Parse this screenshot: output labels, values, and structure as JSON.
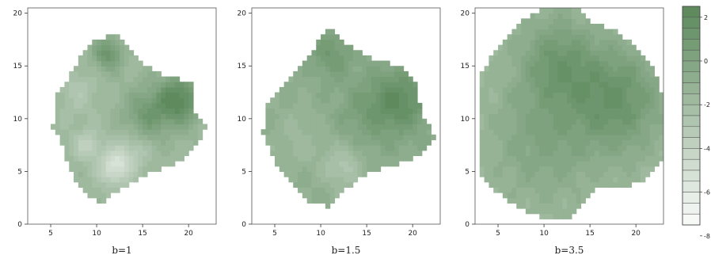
{
  "chart_data": [
    {
      "type": "heatmap",
      "label": "b=1",
      "xlim": [
        2.5,
        23
      ],
      "ylim": [
        0,
        20.5
      ],
      "xticks": [
        5,
        10,
        15,
        20
      ],
      "yticks": [
        0,
        5,
        10,
        15,
        20
      ],
      "hotspots": [
        {
          "x": 19,
          "y": 11.8,
          "value": 2.6,
          "spread": 1.6
        },
        {
          "x": 11.2,
          "y": 16.2,
          "value": 1.6,
          "spread": 1.1
        },
        {
          "x": 15.5,
          "y": 10.5,
          "value": 1.0,
          "spread": 1.8
        },
        {
          "x": 12,
          "y": 5.5,
          "value": -5,
          "spread": 1.2
        },
        {
          "x": 9,
          "y": 7.5,
          "value": -3.5,
          "spread": 1.0
        },
        {
          "x": 8,
          "y": 12.5,
          "value": -2.5,
          "spread": 1.5
        },
        {
          "x": 14,
          "y": 7,
          "value": -3,
          "spread": 1.2
        }
      ],
      "base_value": -1.5
    },
    {
      "type": "heatmap",
      "label": "b=1.5",
      "xlim": [
        2.5,
        23
      ],
      "ylim": [
        0,
        20.5
      ],
      "xticks": [
        5,
        10,
        15,
        20
      ],
      "yticks": [
        0,
        5,
        10,
        15,
        20
      ],
      "hotspots": [
        {
          "x": 18.8,
          "y": 11.8,
          "value": 2.0,
          "spread": 2.2
        },
        {
          "x": 11.2,
          "y": 16.2,
          "value": 1.2,
          "spread": 1.6
        },
        {
          "x": 15,
          "y": 10.5,
          "value": 0.6,
          "spread": 2.5
        },
        {
          "x": 12.5,
          "y": 5.5,
          "value": -2.5,
          "spread": 1.6
        },
        {
          "x": 7.5,
          "y": 8,
          "value": -1.5,
          "spread": 2.0
        }
      ],
      "base_value": -0.6
    },
    {
      "type": "heatmap",
      "label": "b=3.5",
      "xlim": [
        2.5,
        23
      ],
      "ylim": [
        0,
        20.5
      ],
      "xticks": [
        5,
        10,
        15,
        20
      ],
      "yticks": [
        0,
        5,
        10,
        15,
        20
      ],
      "hotspots": [
        {
          "x": 18,
          "y": 11.8,
          "value": 1.6,
          "spread": 3.5
        },
        {
          "x": 11.5,
          "y": 15.5,
          "value": 1.0,
          "spread": 3.0
        },
        {
          "x": 10,
          "y": 8,
          "value": 0.2,
          "spread": 4.0
        }
      ],
      "base_value": -1.5
    }
  ],
  "legend": {
    "levels": [
      2.5,
      2,
      1.5,
      1,
      0.5,
      0,
      -0.5,
      -1,
      -1.5,
      -2,
      -2.5,
      -3,
      -3.5,
      -4,
      -4.5,
      -5,
      -5.5,
      -6,
      -6.5,
      -7,
      -7.5
    ],
    "labels": [
      "2",
      "0",
      "-2",
      "-4",
      "-6",
      "-8"
    ],
    "label_values": [
      2,
      0,
      -2,
      -4,
      -6,
      -8
    ],
    "color_high": "#5e8a5e",
    "color_low": "#ffffff"
  }
}
